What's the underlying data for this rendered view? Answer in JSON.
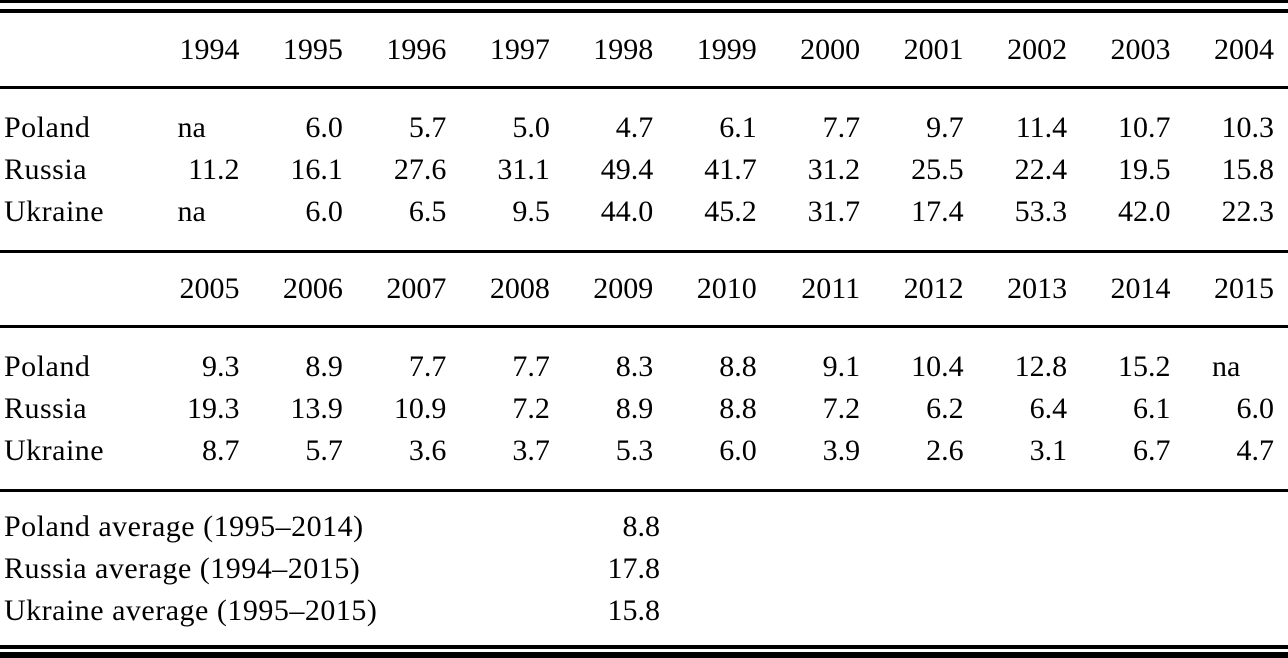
{
  "colors": {
    "background": "#ffffff",
    "text": "#000000",
    "rule": "#000000"
  },
  "table": {
    "block1": {
      "years": [
        "1994",
        "1995",
        "1996",
        "1997",
        "1998",
        "1999",
        "2000",
        "2001",
        "2002",
        "2003",
        "2004"
      ],
      "rows": [
        {
          "label": "Poland",
          "values": [
            "na",
            "6.0",
            "5.7",
            "5.0",
            "4.7",
            "6.1",
            "7.7",
            "9.7",
            "11.4",
            "10.7",
            "10.3"
          ]
        },
        {
          "label": "Russia",
          "values": [
            "11.2",
            "16.1",
            "27.6",
            "31.1",
            "49.4",
            "41.7",
            "31.2",
            "25.5",
            "22.4",
            "19.5",
            "15.8"
          ]
        },
        {
          "label": "Ukraine",
          "values": [
            "na",
            "6.0",
            "6.5",
            "9.5",
            "44.0",
            "45.2",
            "31.7",
            "17.4",
            "53.3",
            "42.0",
            "22.3"
          ]
        }
      ]
    },
    "block2": {
      "years": [
        "2005",
        "2006",
        "2007",
        "2008",
        "2009",
        "2010",
        "2011",
        "2012",
        "2013",
        "2014",
        "2015"
      ],
      "rows": [
        {
          "label": "Poland",
          "values": [
            "9.3",
            "8.9",
            "7.7",
            "7.7",
            "8.3",
            "8.8",
            "9.1",
            "10.4",
            "12.8",
            "15.2",
            "na"
          ]
        },
        {
          "label": "Russia",
          "values": [
            "19.3",
            "13.9",
            "10.9",
            "7.2",
            "8.9",
            "8.8",
            "7.2",
            "6.2",
            "6.4",
            "6.1",
            "6.0"
          ]
        },
        {
          "label": "Ukraine",
          "values": [
            "8.7",
            "5.7",
            "3.6",
            "3.7",
            "5.3",
            "6.0",
            "3.9",
            "2.6",
            "3.1",
            "6.7",
            "4.7"
          ]
        }
      ]
    },
    "averages": [
      {
        "label": "Poland average (1995–2014)",
        "value": "8.8"
      },
      {
        "label": "Russia average (1994–2015)",
        "value": "17.8"
      },
      {
        "label": "Ukraine average (1995–2015)",
        "value": "15.8"
      }
    ]
  }
}
